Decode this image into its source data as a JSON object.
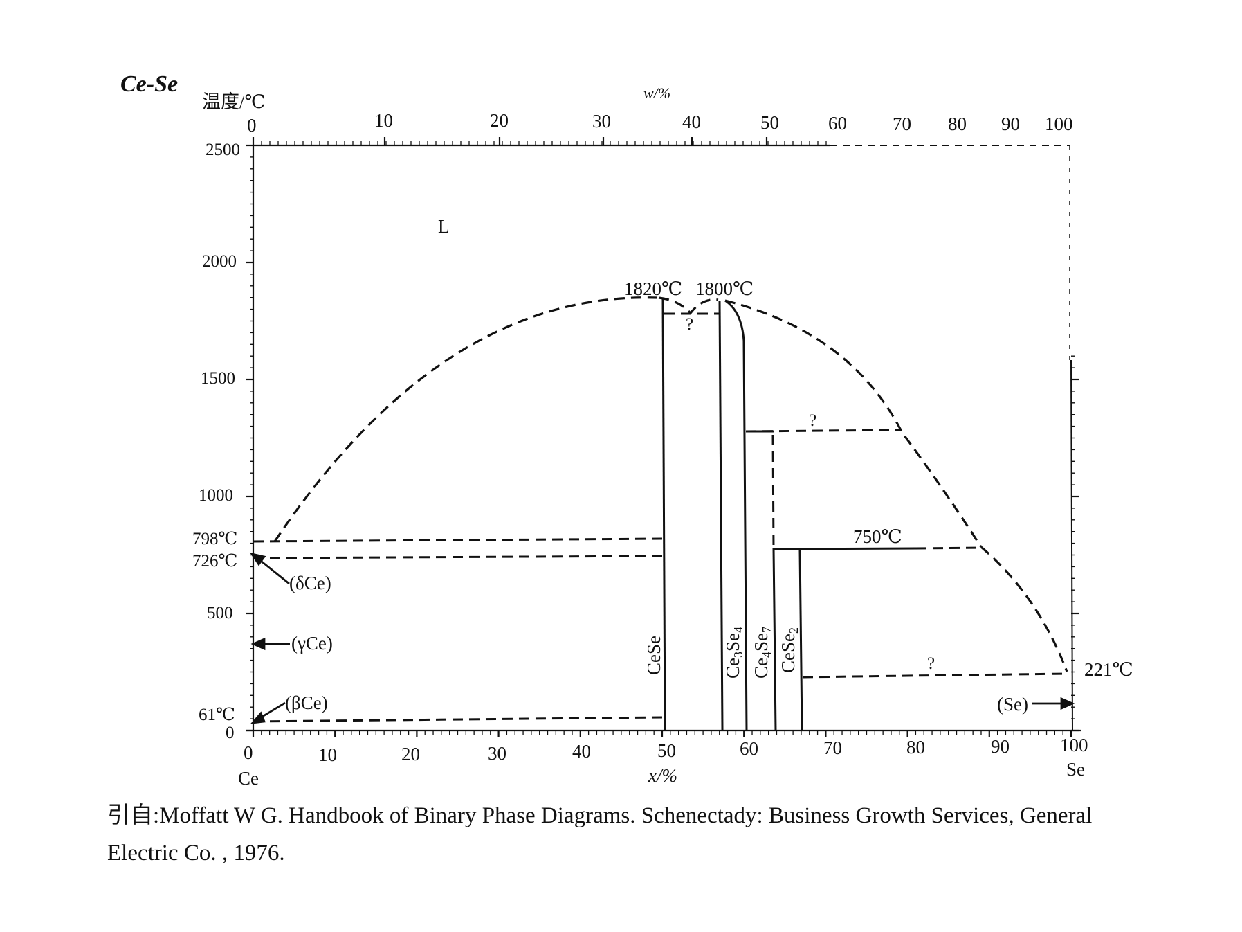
{
  "title": "Ce-Se",
  "y_axis_label": "温度/℃",
  "top_axis_label": "w/%",
  "bottom_axis_label": "x/%",
  "left_element": "Ce",
  "right_element": "Se",
  "y_ticks": [
    "0",
    "500",
    "1000",
    "1500",
    "2000",
    "2500"
  ],
  "x_ticks_bottom": [
    "0",
    "10",
    "20",
    "30",
    "40",
    "50",
    "60",
    "70",
    "80",
    "90",
    "100"
  ],
  "x_ticks_top": [
    "0",
    "10",
    "20",
    "30",
    "40",
    "50",
    "60",
    "70",
    "80",
    "90",
    "100"
  ],
  "temperature_labels": {
    "t798": "798℃",
    "t726": "726℃",
    "t61": "61℃",
    "t1820": "1820℃",
    "t1800": "1800℃",
    "t750": "750℃",
    "t221": "221℃"
  },
  "region_labels": {
    "liquid": "L",
    "delta_ce": "(δCe)",
    "gamma_ce": "(γCe)",
    "beta_ce": "(βCe)",
    "se": "(Se)",
    "q1": "?",
    "q2": "?",
    "q3": "?"
  },
  "compounds": [
    "CeSe",
    "Ce3Se4",
    "Ce4Se7",
    "CeSe2"
  ],
  "caption_line1": "引自:Moffatt W G.  Handbook of Binary Phase Diagrams.  Schenectady: Business Growth Services, General",
  "caption_line2": "Electric Co. , 1976.",
  "chart_data": {
    "type": "phase_diagram",
    "x_unit": "x/% (at.% Se)",
    "y_unit": "温度/℃",
    "xlim": [
      0,
      100
    ],
    "ylim": [
      0,
      2500
    ],
    "liquidus_left": [
      [
        3,
        826
      ],
      [
        10,
        1190
      ],
      [
        20,
        1540
      ],
      [
        30,
        1720
      ],
      [
        40,
        1810
      ],
      [
        49,
        1820
      ]
    ],
    "liquidus_mid": [
      [
        49,
        1820
      ],
      [
        52,
        1780
      ],
      [
        53,
        1755
      ],
      [
        55,
        1800
      ]
    ],
    "liquidus_right": [
      [
        55,
        1800
      ],
      [
        65,
        1650
      ],
      [
        75,
        1400
      ],
      [
        78,
        1277
      ],
      [
        85,
        960
      ],
      [
        87,
        750
      ],
      [
        93,
        520
      ],
      [
        98,
        221
      ]
    ],
    "compound_lines": [
      {
        "name": "CeSe",
        "x": 50,
        "ymax": 1820
      },
      {
        "name": "Ce3Se4",
        "x": 57,
        "ymax": 1800
      },
      {
        "name": "Ce4Se7",
        "x": 63,
        "ymax": 1277
      },
      {
        "name": "CeSe2",
        "x": 66,
        "ymax": 750
      }
    ],
    "horizontals": [
      {
        "y": 798,
        "x": [
          0,
          50
        ],
        "dashed": true
      },
      {
        "y": 726,
        "x": [
          0,
          50
        ],
        "dashed": true
      },
      {
        "y": 61,
        "x": [
          0,
          50
        ],
        "dashed": true
      },
      {
        "y": 1760,
        "x": [
          50,
          57
        ],
        "dashed": true
      },
      {
        "y": 1277,
        "x": [
          60,
          78
        ],
        "dashed": true
      },
      {
        "y": 750,
        "x": [
          63,
          87
        ],
        "dashed": false
      },
      {
        "y": 221,
        "x": [
          66,
          100
        ],
        "dashed": true
      }
    ]
  }
}
